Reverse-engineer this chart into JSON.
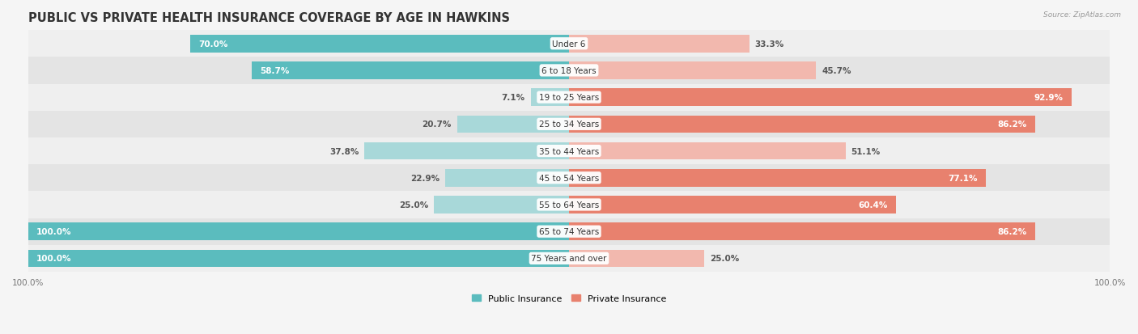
{
  "title": "PUBLIC VS PRIVATE HEALTH INSURANCE COVERAGE BY AGE IN HAWKINS",
  "source": "Source: ZipAtlas.com",
  "categories": [
    "Under 6",
    "6 to 18 Years",
    "19 to 25 Years",
    "25 to 34 Years",
    "35 to 44 Years",
    "45 to 54 Years",
    "55 to 64 Years",
    "65 to 74 Years",
    "75 Years and over"
  ],
  "public_values": [
    70.0,
    58.7,
    7.1,
    20.7,
    37.8,
    22.9,
    25.0,
    100.0,
    100.0
  ],
  "private_values": [
    33.3,
    45.7,
    92.9,
    86.2,
    51.1,
    77.1,
    60.4,
    86.2,
    25.0
  ],
  "public_color_dark": "#5bbcbe",
  "public_color_light": "#a8d8d9",
  "private_color_dark": "#e8816e",
  "private_color_light": "#f2b8ae",
  "row_bg_even": "#efefef",
  "row_bg_odd": "#e4e4e4",
  "title_fontsize": 10.5,
  "label_fontsize": 7.5,
  "axis_fontsize": 7.5,
  "legend_fontsize": 8
}
